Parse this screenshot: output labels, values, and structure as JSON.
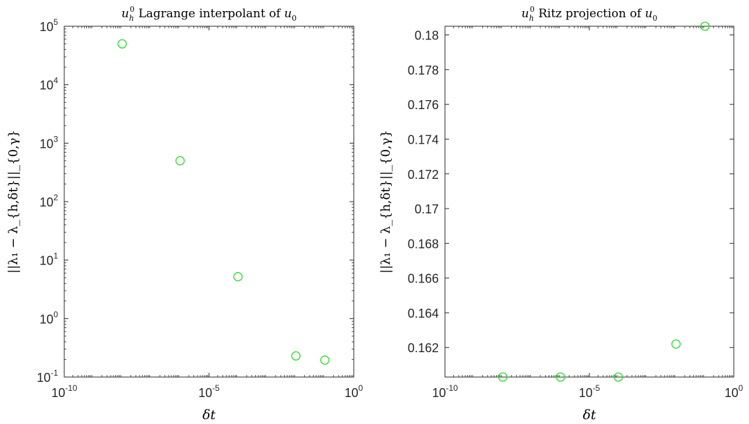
{
  "colors": {
    "marker": "#22dd22",
    "axis": "#262626",
    "background": "#ffffff"
  },
  "chart_data": [
    {
      "type": "scatter",
      "title": {
        "main": "u",
        "sub": "h",
        "sup": "0",
        "text": " Lagrange interpolant of ",
        "var": "u",
        "var_sub": "0"
      },
      "xlabel": "δt",
      "ylabel": "||λ₁ − λ_{h,δt}||_{0,γ}",
      "xscale": "log",
      "yscale": "log",
      "xlim": [
        1e-10,
        1
      ],
      "ylim": [
        0.1,
        100000
      ],
      "xticks": [
        {
          "base": "10",
          "exp": "-10",
          "value": 1e-10
        },
        {
          "base": "10",
          "exp": "-5",
          "value": 1e-05
        },
        {
          "base": "10",
          "exp": "0",
          "value": 1
        }
      ],
      "yticks": [
        {
          "base": "10",
          "exp": "-1",
          "value": 0.1
        },
        {
          "base": "10",
          "exp": "0",
          "value": 1
        },
        {
          "base": "10",
          "exp": "1",
          "value": 10
        },
        {
          "base": "10",
          "exp": "2",
          "value": 100
        },
        {
          "base": "10",
          "exp": "3",
          "value": 1000
        },
        {
          "base": "10",
          "exp": "4",
          "value": 10000
        },
        {
          "base": "10",
          "exp": "5",
          "value": 100000
        }
      ],
      "points": [
        {
          "x": 1e-08,
          "y": 50000
        },
        {
          "x": 1e-06,
          "y": 500
        },
        {
          "x": 0.0001,
          "y": 5.2
        },
        {
          "x": 0.01,
          "y": 0.23
        },
        {
          "x": 0.1,
          "y": 0.195
        }
      ]
    },
    {
      "type": "scatter",
      "title": {
        "main": "u",
        "sub": "h",
        "sup": "0",
        "text": " Ritz projection of ",
        "var": "u",
        "var_sub": "0"
      },
      "xlabel": "δt",
      "ylabel": "||λ₁ − λ_{h,δt}||_{0,γ}",
      "xscale": "log",
      "yscale": "linear",
      "xlim": [
        1e-10,
        1
      ],
      "ylim": [
        0.1603,
        0.1805
      ],
      "xticks": [
        {
          "base": "10",
          "exp": "-10",
          "value": 1e-10
        },
        {
          "base": "10",
          "exp": "-5",
          "value": 1e-05
        },
        {
          "base": "10",
          "exp": "0",
          "value": 1
        }
      ],
      "yticks": [
        {
          "label": "0.162",
          "value": 0.162
        },
        {
          "label": "0.164",
          "value": 0.164
        },
        {
          "label": "0.166",
          "value": 0.166
        },
        {
          "label": "0.168",
          "value": 0.168
        },
        {
          "label": "0.17",
          "value": 0.17
        },
        {
          "label": "0.172",
          "value": 0.172
        },
        {
          "label": "0.174",
          "value": 0.174
        },
        {
          "label": "0.176",
          "value": 0.176
        },
        {
          "label": "0.178",
          "value": 0.178
        },
        {
          "label": "0.18",
          "value": 0.18
        }
      ],
      "points": [
        {
          "x": 1e-08,
          "y": 0.1603
        },
        {
          "x": 1e-06,
          "y": 0.1603
        },
        {
          "x": 0.0001,
          "y": 0.1603
        },
        {
          "x": 0.01,
          "y": 0.1622
        },
        {
          "x": 0.1,
          "y": 0.1805
        }
      ]
    }
  ]
}
